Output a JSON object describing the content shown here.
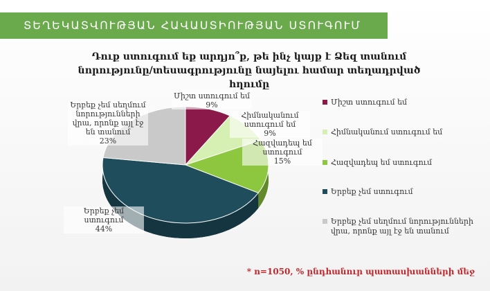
{
  "header": "ՏԵՂԵԿԱՏՎՈՒԹՅԱՆ ՀԱՎԱՍՏԻՈՒԹՅԱՆ ՍՏՈՒԳՈՒՄ",
  "note": "* n=1050, % ընդհանուր պատասխանների մեջ",
  "chart_data": {
    "type": "pie",
    "title": "Դուք ստուգում եք արդյո՞ք, թե ինչ կայք է Ձեզ տանում նորությունը/տեսագրությունը նայելու համար տեղադրված հղումը",
    "categories": [
      "Միշտ ստուգում եմ",
      "Հիմնականում ստուգում եմ",
      "Հազվադեպ եմ ստուգում",
      "Երբեք չեմ ստուգում",
      "Երբեք չեմ սեղմում նորությունների վրա, որոնք այլ էջ են տանում"
    ],
    "values": [
      9,
      9,
      15,
      44,
      23
    ],
    "value_labels": [
      "9%",
      "9%",
      "15%",
      "44%",
      "23%"
    ],
    "colors": [
      "#8b1a4a",
      "#d6efb3",
      "#8dc63f",
      "#1f4d5c",
      "#c9c9c9"
    ],
    "legend": "right"
  }
}
